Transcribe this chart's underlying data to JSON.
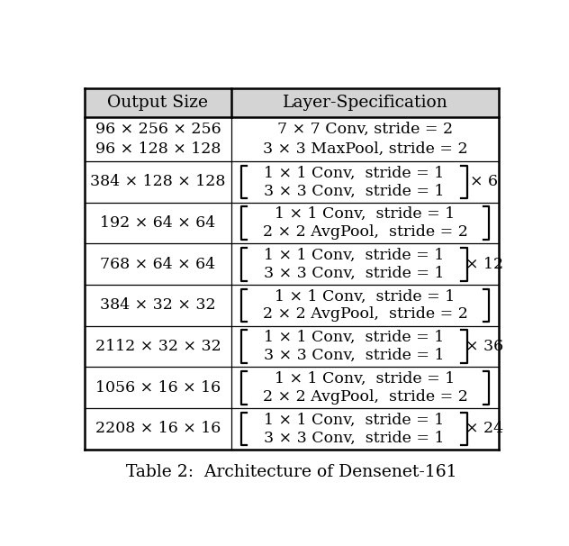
{
  "title": "Table 2:  Architecture of Densenet-161",
  "col_headers": [
    "Output Size",
    "Layer-Specification"
  ],
  "rows": [
    {
      "output_lines": [
        "96 × 256 × 256",
        "96 × 128 × 128"
      ],
      "layer_lines": [
        "7 × 7 Conv, stride = 2",
        "3 × 3 MaxPool, stride = 2"
      ],
      "bracket": false,
      "multiplier": null
    },
    {
      "output_lines": [
        "384 × 128 × 128"
      ],
      "layer_lines": [
        "1 × 1 Conv,  stride = 1",
        "3 × 3 Conv,  stride = 1"
      ],
      "bracket": true,
      "multiplier": "× 6"
    },
    {
      "output_lines": [
        "192 × 64 × 64"
      ],
      "layer_lines": [
        "1 × 1 Conv,  stride = 1",
        "2 × 2 AvgPool,  stride = 2"
      ],
      "bracket": true,
      "multiplier": null
    },
    {
      "output_lines": [
        "768 × 64 × 64"
      ],
      "layer_lines": [
        "1 × 1 Conv,  stride = 1",
        "3 × 3 Conv,  stride = 1"
      ],
      "bracket": true,
      "multiplier": "× 12"
    },
    {
      "output_lines": [
        "384 × 32 × 32"
      ],
      "layer_lines": [
        "1 × 1 Conv,  stride = 1",
        "2 × 2 AvgPool,  stride = 2"
      ],
      "bracket": true,
      "multiplier": null
    },
    {
      "output_lines": [
        "2112 × 32 × 32"
      ],
      "layer_lines": [
        "1 × 1 Conv,  stride = 1",
        "3 × 3 Conv,  stride = 1"
      ],
      "bracket": true,
      "multiplier": "× 36"
    },
    {
      "output_lines": [
        "1056 × 16 × 16"
      ],
      "layer_lines": [
        "1 × 1 Conv,  stride = 1",
        "2 × 2 AvgPool,  stride = 2"
      ],
      "bracket": true,
      "multiplier": null
    },
    {
      "output_lines": [
        "2208 × 16 × 16"
      ],
      "layer_lines": [
        "1 × 1 Conv,  stride = 1",
        "3 × 3 Conv,  stride = 1"
      ],
      "bracket": true,
      "multiplier": "× 24"
    }
  ],
  "bg_color": "#ffffff",
  "text_color": "#000000",
  "header_bg": "#d4d4d4",
  "border_color": "#000000",
  "font_size": 12.5,
  "header_font_size": 13.5
}
